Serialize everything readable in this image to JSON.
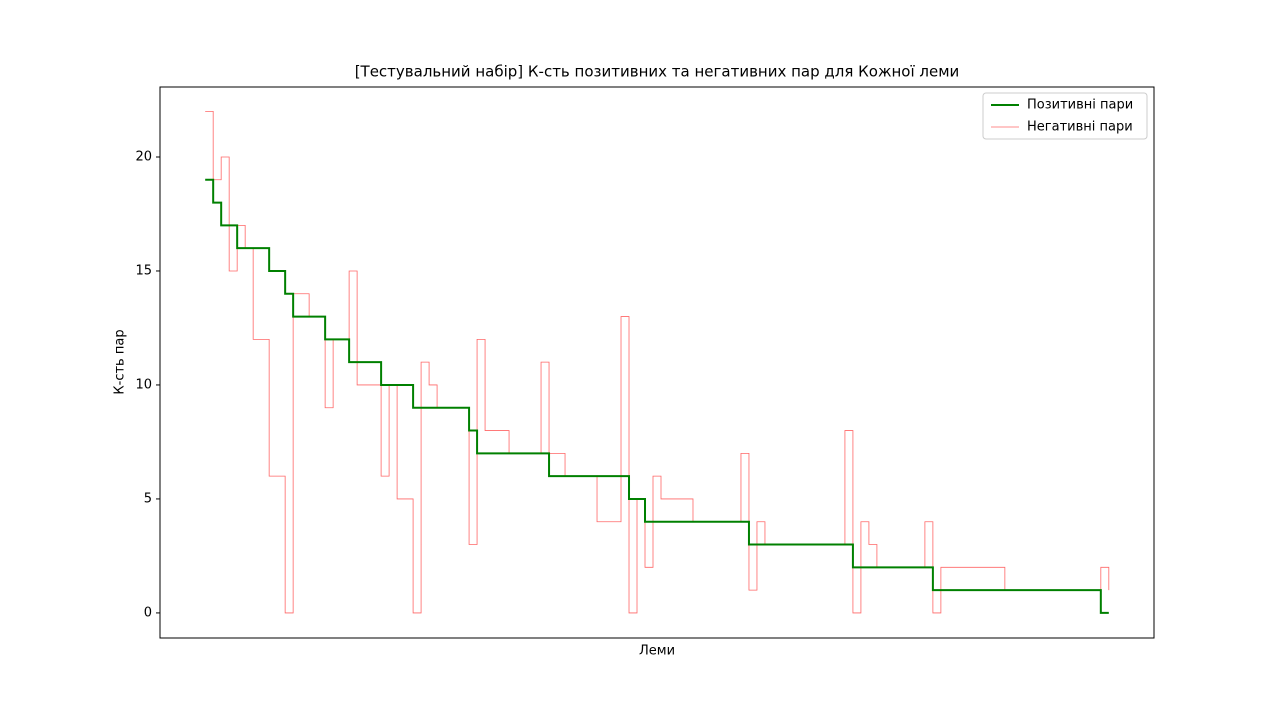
{
  "chart_data": {
    "type": "line",
    "title": "[Тестувальний набір] К-сть позитивних та негативних пар для Кожної леми",
    "xlabel": "Леми",
    "ylabel": "К-сть пар",
    "ylim": [
      -1.1,
      23.07
    ],
    "yticks": [
      0,
      5,
      10,
      15,
      20
    ],
    "legend": "upper right",
    "grid": false,
    "series": [
      {
        "name": "Позитивні пари",
        "color": "#008000",
        "width": 2,
        "values": [
          19,
          18,
          17,
          17,
          16,
          16,
          16,
          16,
          15,
          15,
          14,
          13,
          13,
          13,
          13,
          12,
          12,
          12,
          11,
          11,
          11,
          11,
          10,
          10,
          10,
          10,
          9,
          9,
          9,
          9,
          9,
          9,
          9,
          8,
          7,
          7,
          7,
          7,
          7,
          7,
          7,
          7,
          7,
          6,
          6,
          6,
          6,
          6,
          6,
          6,
          6,
          6,
          6,
          5,
          5,
          4,
          4,
          4,
          4,
          4,
          4,
          4,
          4,
          4,
          4,
          4,
          4,
          4,
          3,
          3,
          3,
          3,
          3,
          3,
          3,
          3,
          3,
          3,
          3,
          3,
          3,
          2,
          2,
          2,
          2,
          2,
          2,
          2,
          2,
          2,
          2,
          1,
          1,
          1,
          1,
          1,
          1,
          1,
          1,
          1,
          1,
          1,
          1,
          1,
          1,
          1,
          1,
          1,
          1,
          1,
          1,
          1,
          0,
          0
        ]
      },
      {
        "name": "Негативні пари",
        "color": "#ff0000",
        "width": 0.8,
        "values": [
          22,
          19,
          20,
          15,
          17,
          16,
          12,
          12,
          6,
          6,
          0,
          14,
          14,
          13,
          13,
          9,
          12,
          12,
          15,
          10,
          10,
          10,
          6,
          10,
          5,
          5,
          0,
          11,
          10,
          9,
          9,
          9,
          9,
          3,
          12,
          8,
          8,
          8,
          7,
          7,
          7,
          7,
          11,
          7,
          7,
          6,
          6,
          6,
          6,
          4,
          4,
          4,
          13,
          0,
          5,
          2,
          6,
          5,
          5,
          5,
          5,
          4,
          4,
          4,
          4,
          4,
          4,
          7,
          1,
          4,
          3,
          3,
          3,
          3,
          3,
          3,
          3,
          3,
          3,
          3,
          8,
          0,
          4,
          3,
          2,
          2,
          2,
          2,
          2,
          2,
          4,
          0,
          2,
          2,
          2,
          2,
          2,
          2,
          2,
          2,
          1,
          1,
          1,
          1,
          1,
          1,
          1,
          1,
          1,
          1,
          1,
          1,
          2,
          1
        ]
      }
    ]
  }
}
